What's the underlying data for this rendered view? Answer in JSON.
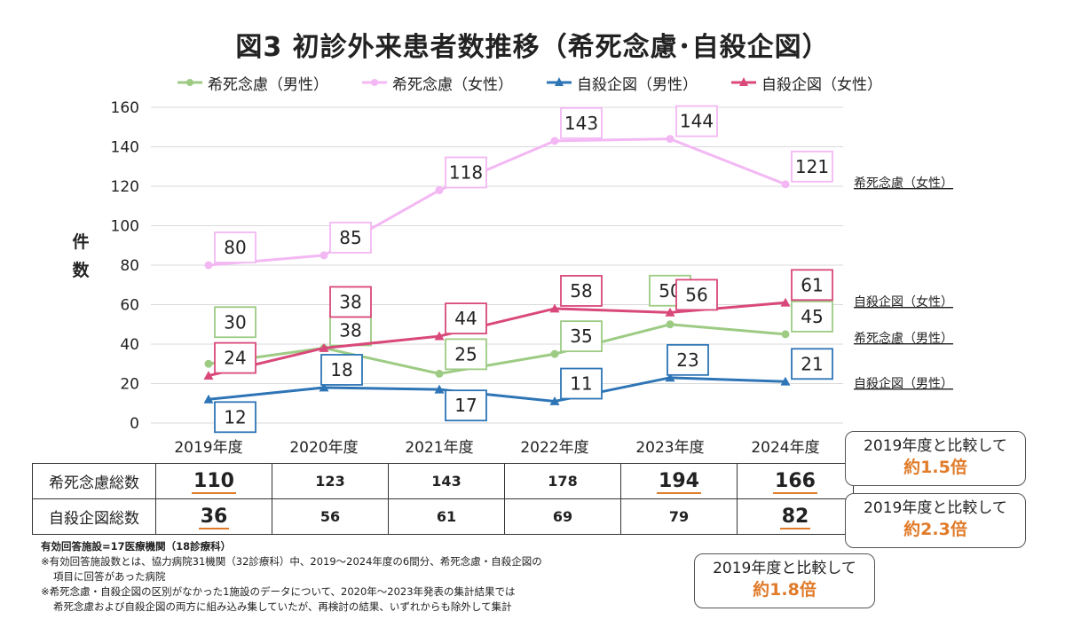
{
  "title": "図3 初診外来患者数推移（希死念慮･自殺企図）",
  "chart_data": {
    "type": "line",
    "categories": [
      "2019年度",
      "2020年度",
      "2021年度",
      "2022年度",
      "2023年度",
      "2024年度"
    ],
    "ylabel": "件数",
    "ylim": [
      0,
      160
    ],
    "yticks": [
      0,
      20,
      40,
      60,
      80,
      100,
      120,
      140,
      160
    ],
    "grid": true,
    "legend_position": "top",
    "series": [
      {
        "name": "希死念慮（男性）",
        "values": [
          30,
          38,
          25,
          35,
          50,
          45
        ],
        "color": "#9dcb84",
        "marker": "circle",
        "end_label": "希死念慮（男性）"
      },
      {
        "name": "希死念慮（女性）",
        "values": [
          80,
          85,
          118,
          143,
          144,
          121
        ],
        "color": "#f3b8f3",
        "marker": "circle",
        "end_label": "希死念慮（女性）"
      },
      {
        "name": "自殺企図（男性）",
        "values": [
          12,
          18,
          17,
          11,
          23,
          21
        ],
        "color": "#2e75b6",
        "marker": "triangle",
        "end_label": "自殺企図（男性）"
      },
      {
        "name": "自殺企図（女性）",
        "values": [
          24,
          38,
          44,
          58,
          56,
          61
        ],
        "color": "#d9487a",
        "marker": "triangle",
        "end_label": "自殺企図（女性）"
      }
    ]
  },
  "totals_table": {
    "rows": [
      {
        "label": "希死念慮総数",
        "values": [
          "110",
          "123",
          "143",
          "178",
          "194",
          "166"
        ],
        "emphasized": [
          0,
          4,
          5
        ]
      },
      {
        "label": "自殺企図総数",
        "values": [
          "36",
          "56",
          "61",
          "69",
          "79",
          "82"
        ],
        "emphasized": [
          0,
          5
        ]
      }
    ]
  },
  "callouts": [
    {
      "line1": "2019年度と比較して",
      "line2": "約1.5倍"
    },
    {
      "line1": "2019年度と比較して",
      "line2": "約2.3倍"
    },
    {
      "line1": "2019年度と比較して",
      "line2": "約1.8倍"
    }
  ],
  "notes": [
    "有効回答施設=17医療機関（18診療科）",
    "※有効回答施設数とは、協力病院31機関（32診療科）中、2019～2024年度の6間分、希死念慮・自殺企図の",
    "項目に回答があった病院",
    "※希死念慮・自殺企図の区別がなかった1施設のデータについて、2020年～2023年発表の集計結果では",
    "希死念慮および自殺企図の両方に組み込み集していたが、再検討の結果、いずれからも除外して集計"
  ],
  "colors": {
    "accent": "#e07b2a",
    "grid": "#d9d9d9",
    "axis_text": "#222222"
  }
}
